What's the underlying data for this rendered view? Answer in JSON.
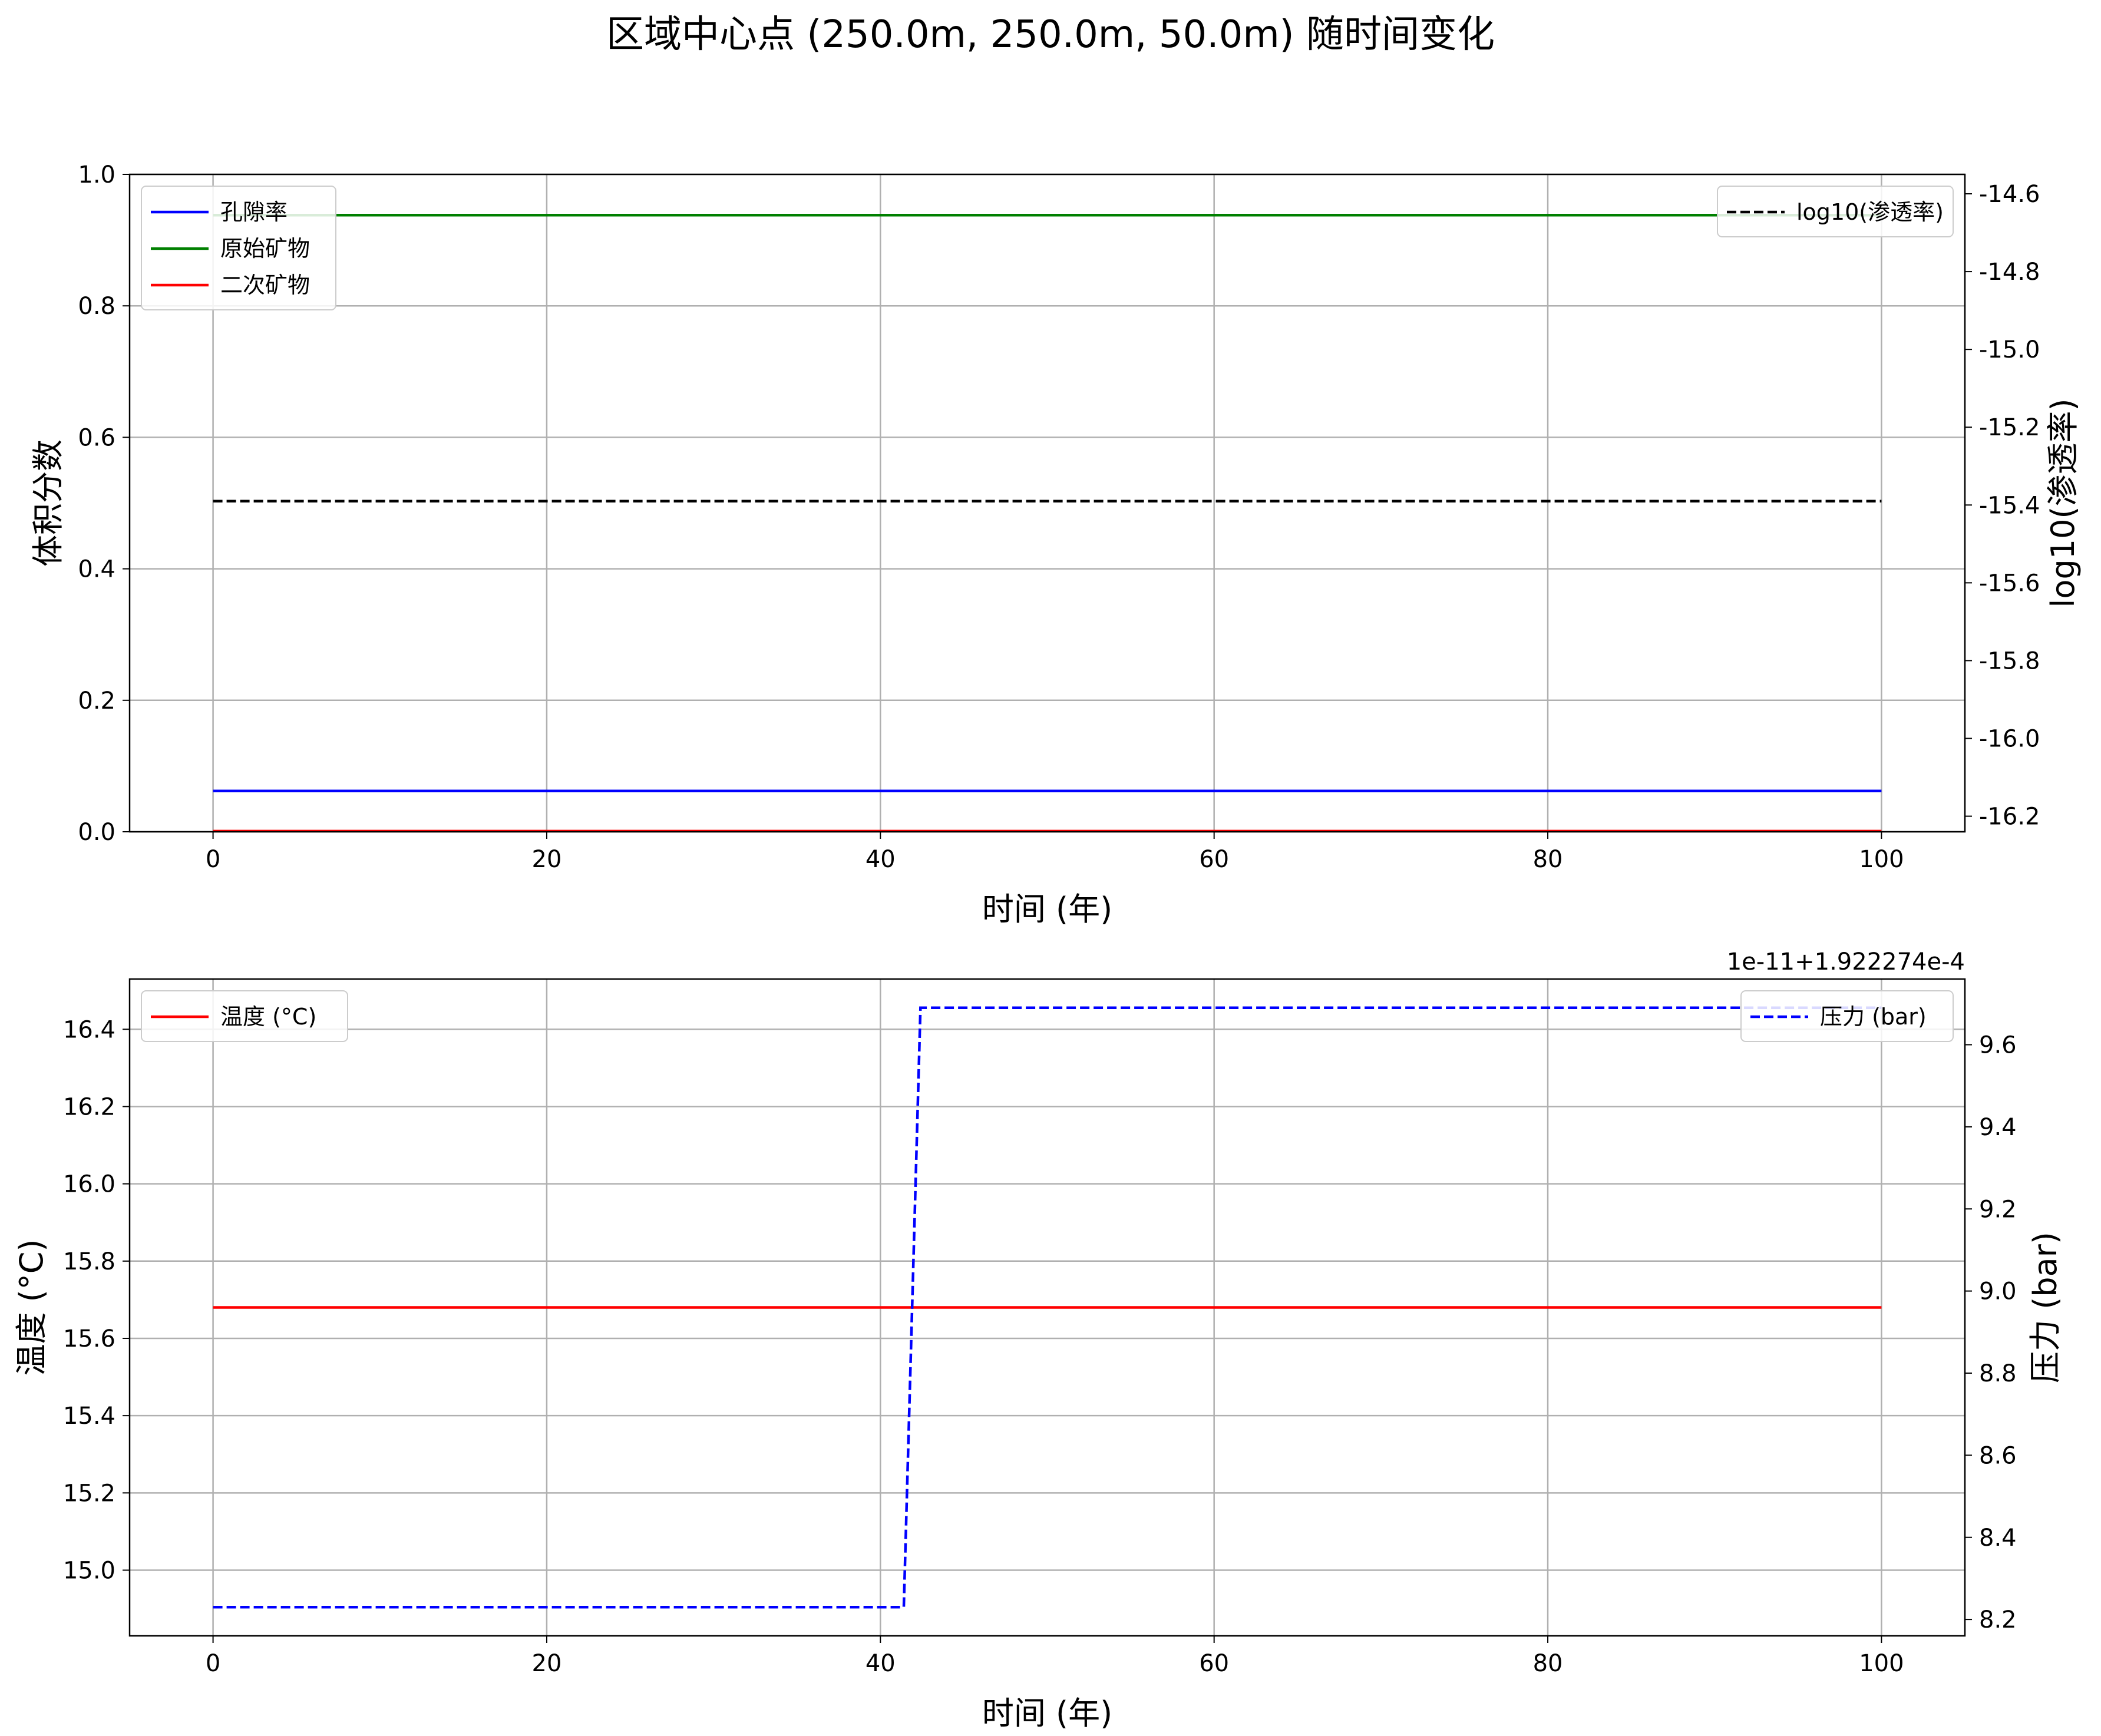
{
  "suptitle": "区域中心点 (250.0m, 250.0m, 50.0m) 随时间变化",
  "colors": {
    "porosity": "#0000ff",
    "primary": "#008000",
    "secondary": "#ff0000",
    "log_perm": "#000000",
    "temperature": "#ff0000",
    "pressure": "#0000ff",
    "grid": "#b0b0b0",
    "frame": "#000000"
  },
  "chart_data": [
    {
      "type": "line",
      "xlabel": "时间 (年)",
      "ylabel": "体积分数",
      "y2label": "log10(渗透率)",
      "xlim": [
        -5,
        105
      ],
      "ylim": [
        0,
        1
      ],
      "y2lim": [
        -16.24,
        -14.55
      ],
      "xticks": [
        0,
        20,
        40,
        60,
        80,
        100
      ],
      "yticks": [
        0.0,
        0.2,
        0.4,
        0.6,
        0.8,
        1.0
      ],
      "ytick_labels": [
        "0.0",
        "0.2",
        "0.4",
        "0.6",
        "0.8",
        "1.0"
      ],
      "y2ticks": [
        -14.6,
        -14.8,
        -15.0,
        -15.2,
        -15.4,
        -15.6,
        -15.8,
        -16.0,
        -16.2
      ],
      "y2tick_labels": [
        "-14.6",
        "-14.8",
        "-15.0",
        "-15.2",
        "-15.4",
        "-15.6",
        "-15.8",
        "-16.0",
        "-16.2"
      ],
      "grid": true,
      "legend_left": "upper-left",
      "legend_right": "upper-right",
      "series": [
        {
          "name": "孔隙率",
          "axis": "left",
          "style": "solid",
          "color_key": "porosity",
          "x": [
            0,
            100
          ],
          "y": [
            0.062,
            0.062
          ]
        },
        {
          "name": "原始矿物",
          "axis": "left",
          "style": "solid",
          "color_key": "primary",
          "x": [
            0,
            100
          ],
          "y": [
            0.938,
            0.938
          ]
        },
        {
          "name": "二次矿物",
          "axis": "left",
          "style": "solid",
          "color_key": "secondary",
          "x": [
            0,
            100
          ],
          "y": [
            0.001,
            0.001
          ]
        },
        {
          "name": "log10(渗透率)",
          "axis": "right",
          "style": "dashed",
          "color_key": "log_perm",
          "x": [
            0,
            100
          ],
          "y": [
            -15.39,
            -15.39
          ]
        }
      ]
    },
    {
      "type": "line",
      "xlabel": "时间 (年)",
      "ylabel": "温度 (°C)",
      "y2label": "压力 (bar)",
      "y2_offset_text": "1e-11+1.922274e-4",
      "xlim": [
        -5,
        105
      ],
      "ylim": [
        14.83,
        16.53
      ],
      "y2lim": [
        8.16,
        9.76
      ],
      "xticks": [
        0,
        20,
        40,
        60,
        80,
        100
      ],
      "yticks": [
        15.0,
        15.2,
        15.4,
        15.6,
        15.8,
        16.0,
        16.2,
        16.4
      ],
      "ytick_labels": [
        "15.0",
        "15.2",
        "15.4",
        "15.6",
        "15.8",
        "16.0",
        "16.2",
        "16.4"
      ],
      "y2ticks": [
        8.2,
        8.4,
        8.6,
        8.8,
        9.0,
        9.2,
        9.4,
        9.6
      ],
      "y2tick_labels": [
        "8.2",
        "8.4",
        "8.6",
        "8.8",
        "9.0",
        "9.2",
        "9.4",
        "9.6"
      ],
      "grid": true,
      "legend_left": "upper-left",
      "legend_right": "upper-right",
      "series": [
        {
          "name": "温度 (°C)",
          "axis": "left",
          "style": "solid",
          "color_key": "temperature",
          "x": [
            0,
            100
          ],
          "y": [
            15.68,
            15.68
          ]
        },
        {
          "name": "压力 (bar)",
          "axis": "right",
          "style": "dashed",
          "color_key": "pressure",
          "x": [
            0,
            41.4,
            42.4,
            100
          ],
          "y": [
            8.23,
            8.23,
            9.69,
            9.69
          ]
        }
      ]
    }
  ]
}
